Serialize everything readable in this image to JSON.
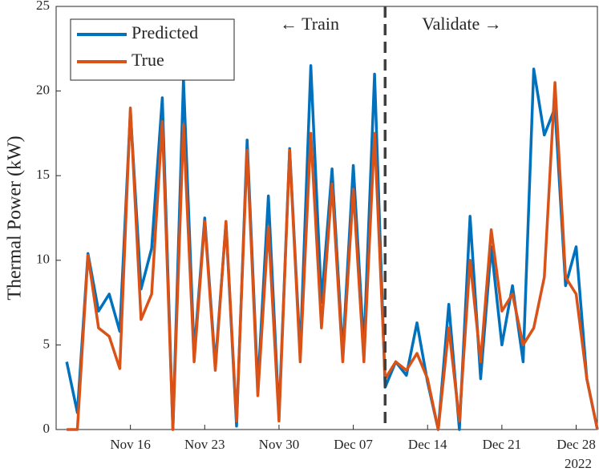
{
  "chart_data": {
    "type": "line",
    "ylabel": "Thermal Power (kW)",
    "x_year_label": "2022",
    "annotations": [
      "← Train",
      "Validate →"
    ],
    "split_date": "2022-12-10",
    "legend": "upper left",
    "x": [
      "2022-11-10",
      "2022-11-11",
      "2022-11-12",
      "2022-11-13",
      "2022-11-14",
      "2022-11-15",
      "2022-11-16",
      "2022-11-17",
      "2022-11-18",
      "2022-11-19",
      "2022-11-20",
      "2022-11-21",
      "2022-11-22",
      "2022-11-23",
      "2022-11-24",
      "2022-11-25",
      "2022-11-26",
      "2022-11-27",
      "2022-11-28",
      "2022-11-29",
      "2022-11-30",
      "2022-12-01",
      "2022-12-02",
      "2022-12-03",
      "2022-12-04",
      "2022-12-05",
      "2022-12-06",
      "2022-12-07",
      "2022-12-08",
      "2022-12-09",
      "2022-12-10",
      "2022-12-11",
      "2022-12-12",
      "2022-12-13",
      "2022-12-14",
      "2022-12-15",
      "2022-12-16",
      "2022-12-17",
      "2022-12-18",
      "2022-12-19",
      "2022-12-20",
      "2022-12-21",
      "2022-12-22",
      "2022-12-23",
      "2022-12-24",
      "2022-12-25",
      "2022-12-26",
      "2022-12-27",
      "2022-12-28",
      "2022-12-29",
      "2022-12-30"
    ],
    "series": [
      {
        "name": "Predicted",
        "color": "#0072BD",
        "values": [
          4,
          1,
          10.4,
          7,
          8,
          5.8,
          18.8,
          8.3,
          10.7,
          19.6,
          0,
          20.7,
          4.5,
          12.5,
          3.8,
          12.2,
          0.2,
          17.1,
          2.5,
          13.8,
          0.8,
          16.6,
          4.5,
          21.5,
          7.5,
          15.4,
          4.5,
          15.6,
          4.8,
          21,
          2.5,
          4,
          3.2,
          6.3,
          2.8,
          0,
          7.4,
          0,
          12.6,
          3,
          10.8,
          5,
          8.5,
          4,
          21.3,
          17.4,
          19,
          8.5,
          10.8,
          3,
          0
        ]
      },
      {
        "name": "True",
        "color": "#D95319",
        "values": [
          0,
          0,
          10.3,
          6,
          5.5,
          3.6,
          19,
          6.5,
          8,
          18.2,
          0,
          18,
          4,
          12.3,
          3.5,
          12.3,
          0.5,
          16.5,
          2,
          12,
          0.5,
          16.5,
          4,
          17.5,
          6,
          14.5,
          4,
          14.2,
          4,
          17.5,
          3,
          4,
          3.5,
          4.5,
          3,
          0,
          6,
          0.5,
          10,
          4,
          11.8,
          7,
          8,
          5,
          6,
          9,
          20.5,
          9,
          8,
          3,
          0
        ]
      }
    ],
    "xlim": [
      "2022-11-09",
      "2022-12-30"
    ],
    "xticks": [
      {
        "value": "2022-11-16",
        "label": "Nov 16"
      },
      {
        "value": "2022-11-23",
        "label": "Nov 23"
      },
      {
        "value": "2022-11-30",
        "label": "Nov 30"
      },
      {
        "value": "2022-12-07",
        "label": "Dec 07"
      },
      {
        "value": "2022-12-14",
        "label": "Dec 14"
      },
      {
        "value": "2022-12-21",
        "label": "Dec 21"
      },
      {
        "value": "2022-12-28",
        "label": "Dec 28"
      }
    ],
    "ylim": [
      0,
      25
    ],
    "yticks": [
      0,
      5,
      10,
      15,
      20,
      25
    ]
  }
}
